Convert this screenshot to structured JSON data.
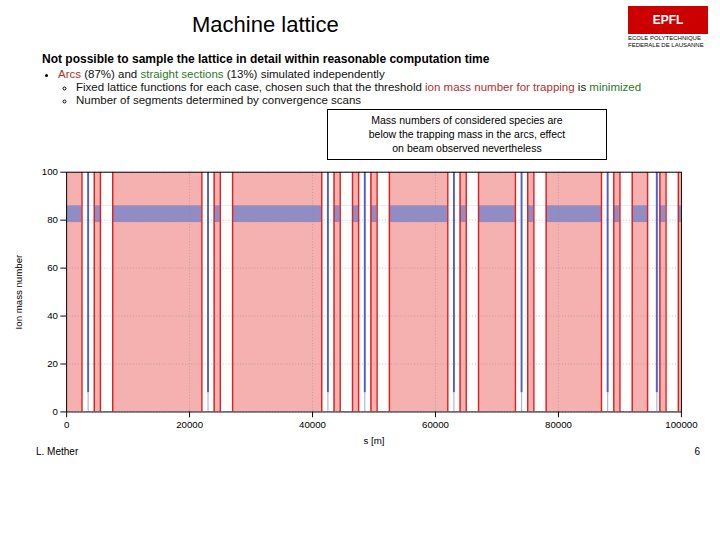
{
  "chart_data": {
    "type": "lattice",
    "title": "Machine lattice",
    "subtitle": "Not possible to sample the lattice in detail within reasonable computation time",
    "bullets": [
      {
        "parts": [
          {
            "text": "Arcs",
            "color": "#b03030"
          },
          {
            "text": " (87%) and ",
            "color": "#111111"
          },
          {
            "text": "straight sections",
            "color": "#2a7a2a"
          },
          {
            "text": " (13%) simulated independently",
            "color": "#111111"
          }
        ],
        "sub": [
          {
            "parts": [
              {
                "text": "Fixed lattice functions for each case, chosen such that the threshold ",
                "color": "#111111"
              },
              {
                "text": "ion mass number for trapping",
                "color": "#b03030"
              },
              {
                "text": " is ",
                "color": "#111111"
              },
              {
                "text": "minimized",
                "color": "#2a7a2a"
              }
            ]
          },
          {
            "parts": [
              {
                "text": "Number of segments determined by convergence scans",
                "color": "#111111"
              }
            ]
          }
        ]
      }
    ],
    "annotation": "Mass numbers of considered species are\nbelow the trapping mass in the arcs, effect\non beam observed nevertheless",
    "logo": {
      "text": "EPFL",
      "caption": "ECOLE POLYTECHNIQUE\nFEDERALE DE LAUSANNE",
      "color": "#cc0000"
    },
    "footer_left": "L. Mether",
    "footer_right": "6",
    "xlabel": "s [m]",
    "ylabel": "Ion mass number",
    "xlim": [
      0,
      100000
    ],
    "ylim": [
      0,
      100
    ],
    "xticks": [
      0,
      20000,
      40000,
      60000,
      80000,
      100000
    ],
    "yticks": [
      0,
      20,
      40,
      60,
      80,
      100
    ],
    "grid": true,
    "arc_color": "#f5b0b0",
    "straight_color": "#ffffff",
    "border_color": "#dd2222",
    "straight_sections": [
      [
        2500,
        4500
      ],
      [
        5500,
        7500
      ],
      [
        22000,
        24000
      ],
      [
        25000,
        27000
      ],
      [
        41500,
        43500
      ],
      [
        44500,
        46500
      ],
      [
        47500,
        49500
      ],
      [
        50500,
        52500
      ],
      [
        62000,
        64000
      ],
      [
        65000,
        67000
      ],
      [
        73000,
        75000
      ],
      [
        76000,
        78000
      ],
      [
        87000,
        89000
      ],
      [
        90000,
        92000
      ],
      [
        94500,
        96500
      ],
      [
        97500,
        99500
      ]
    ],
    "band": {
      "y1": 79,
      "y2": 86,
      "color": "#7080cc"
    },
    "spikes": {
      "x": [
        3500,
        23000,
        42500,
        48500,
        63000,
        74000,
        88000,
        96000
      ],
      "split": 8,
      "color": "#5060c8",
      "lower_color": "#90a0dd"
    }
  }
}
